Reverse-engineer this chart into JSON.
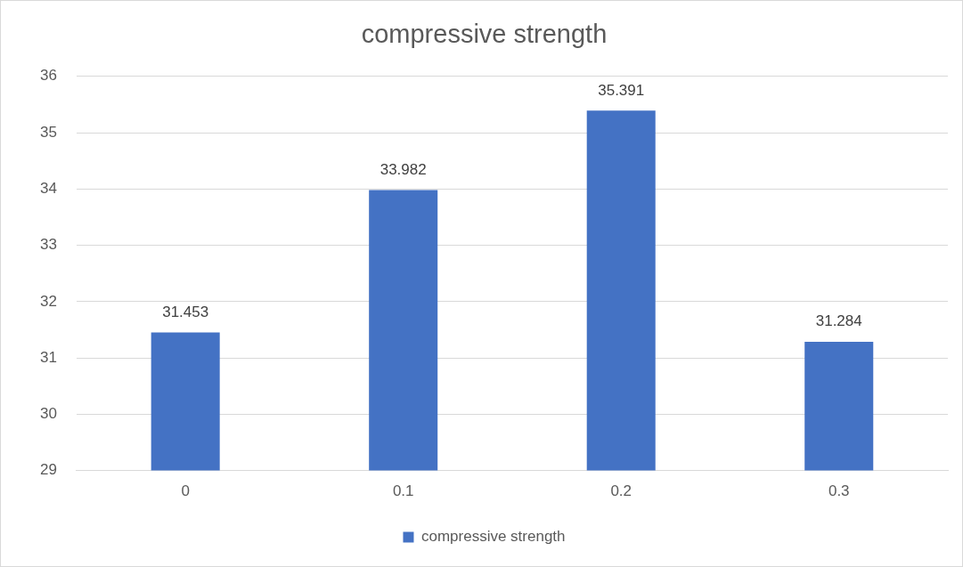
{
  "chart_data": {
    "type": "bar",
    "title": "compressive strength",
    "categories": [
      "0",
      "0.1",
      "0.2",
      "0.3"
    ],
    "series": [
      {
        "name": "compressive strength",
        "color": "#4472c4",
        "values": [
          31.453,
          33.982,
          35.391,
          31.284
        ]
      }
    ],
    "ylim": [
      29,
      36
    ],
    "yticks": [
      29,
      30,
      31,
      32,
      33,
      34,
      35,
      36
    ],
    "grid": "y",
    "legend": "bottom",
    "data_labels": true
  }
}
